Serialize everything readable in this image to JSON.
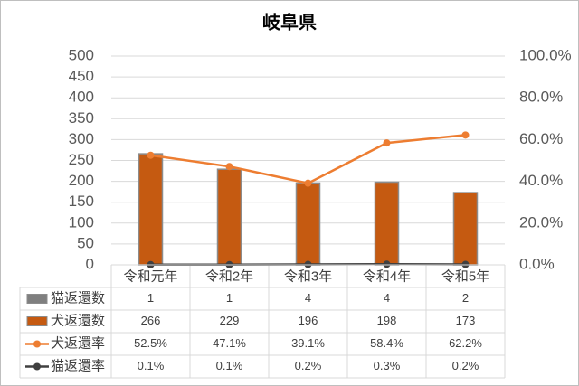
{
  "chart_data": {
    "type": "bar",
    "title": "岐阜県",
    "categories": [
      "令和元年",
      "令和2年",
      "令和3年",
      "令和4年",
      "令和5年"
    ],
    "series": [
      {
        "name": "猫返還数",
        "type": "bar",
        "color": "#7f7f7f",
        "values": [
          1,
          1,
          4,
          4,
          2
        ]
      },
      {
        "name": "犬返還数",
        "type": "bar",
        "color": "#c55a11",
        "values": [
          266,
          229,
          196,
          198,
          173
        ]
      },
      {
        "name": "犬返還率",
        "type": "line",
        "axis": "y2",
        "color": "#ed7d31",
        "values": [
          52.5,
          47.1,
          39.1,
          58.4,
          62.2
        ],
        "value_labels": [
          "52.5%",
          "47.1%",
          "39.1%",
          "58.4%",
          "62.2%"
        ]
      },
      {
        "name": "猫返還率",
        "type": "line",
        "axis": "y2",
        "color": "#404040",
        "values": [
          0.1,
          0.1,
          0.2,
          0.3,
          0.2
        ],
        "value_labels": [
          "0.1%",
          "0.1%",
          "0.2%",
          "0.3%",
          "0.2%"
        ]
      }
    ],
    "ylim": [
      0,
      500
    ],
    "yticks": [
      0,
      50,
      100,
      150,
      200,
      250,
      300,
      350,
      400,
      450,
      500
    ],
    "y2lim": [
      0,
      100
    ],
    "y2ticks": [
      {
        "value": 0,
        "label": "0.0%"
      },
      {
        "value": 20,
        "label": "20.0%"
      },
      {
        "value": 40,
        "label": "40.0%"
      },
      {
        "value": 60,
        "label": "60.0%"
      },
      {
        "value": 80,
        "label": "80.0%"
      },
      {
        "value": 100,
        "label": "100.0%"
      }
    ],
    "grid": true
  }
}
